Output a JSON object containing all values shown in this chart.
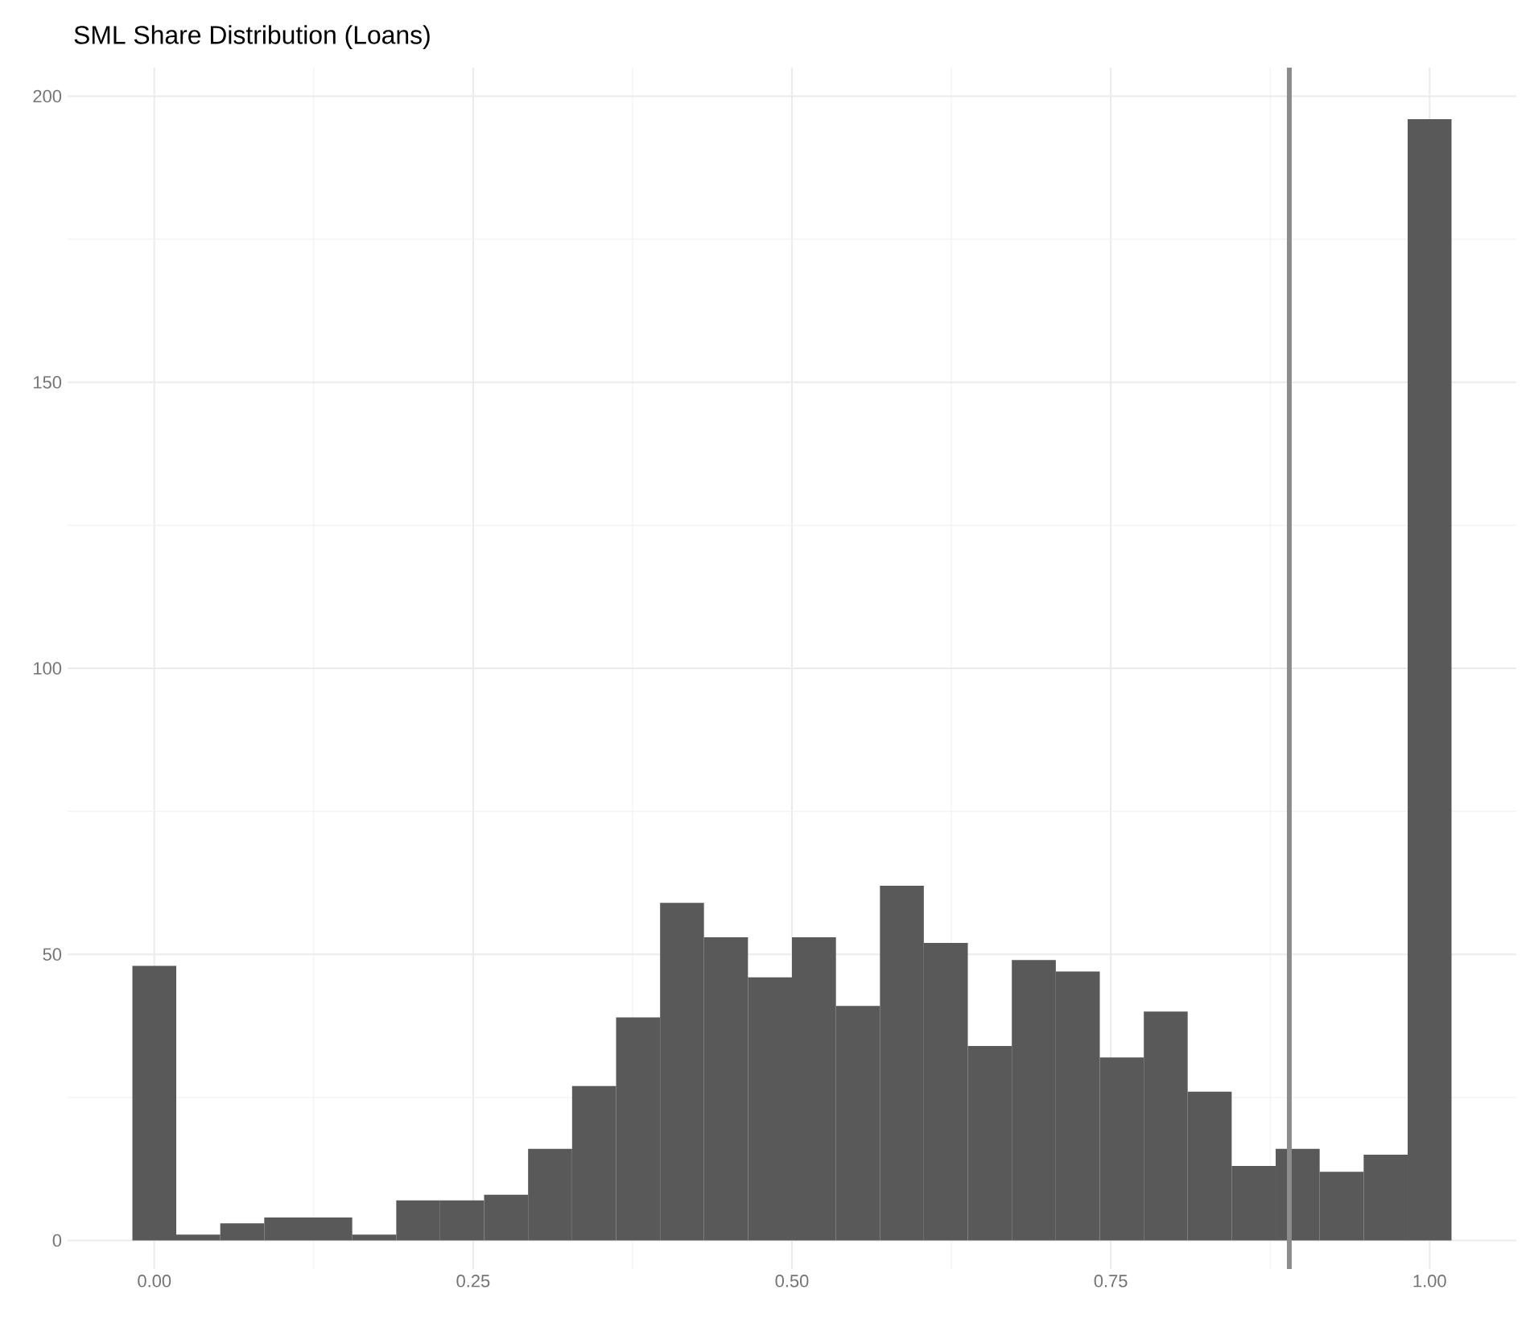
{
  "chart_data": {
    "type": "histogram",
    "title": "SML Share Distribution (Loans)",
    "bins": [
      -0.0172,
      0.0172,
      0.0517,
      0.0862,
      0.1207,
      0.1552,
      0.1897,
      0.2241,
      0.2586,
      0.2931,
      0.3276,
      0.3621,
      0.3966,
      0.431,
      0.4655,
      0.5,
      0.5345,
      0.569,
      0.6034,
      0.6379,
      0.6724,
      0.7069,
      0.7414,
      0.7759,
      0.8103,
      0.8448,
      0.8793,
      0.9138,
      0.9483,
      0.9828,
      1.0172
    ],
    "values": [
      48,
      1,
      3,
      4,
      4,
      1,
      7,
      7,
      8,
      16,
      27,
      39,
      59,
      53,
      46,
      53,
      41,
      62,
      52,
      34,
      49,
      47,
      32,
      40,
      26,
      13,
      16,
      12,
      15,
      196
    ],
    "color": "#595959",
    "xlim": [
      -0.068,
      1.068
    ],
    "ylim": [
      -5,
      205
    ],
    "xticks": [
      {
        "value": 0,
        "label": "0.00"
      },
      0.25,
      {
        "value": 0.5,
        "label": "0.50"
      },
      0.75,
      {
        "value": 1,
        "label": "1.00"
      }
    ],
    "yticks": [
      0,
      50,
      100,
      150,
      200
    ],
    "grid": true,
    "ref_lines": [
      {
        "axis": "x",
        "value": 0.89,
        "color": "#8c8c8c"
      }
    ]
  }
}
